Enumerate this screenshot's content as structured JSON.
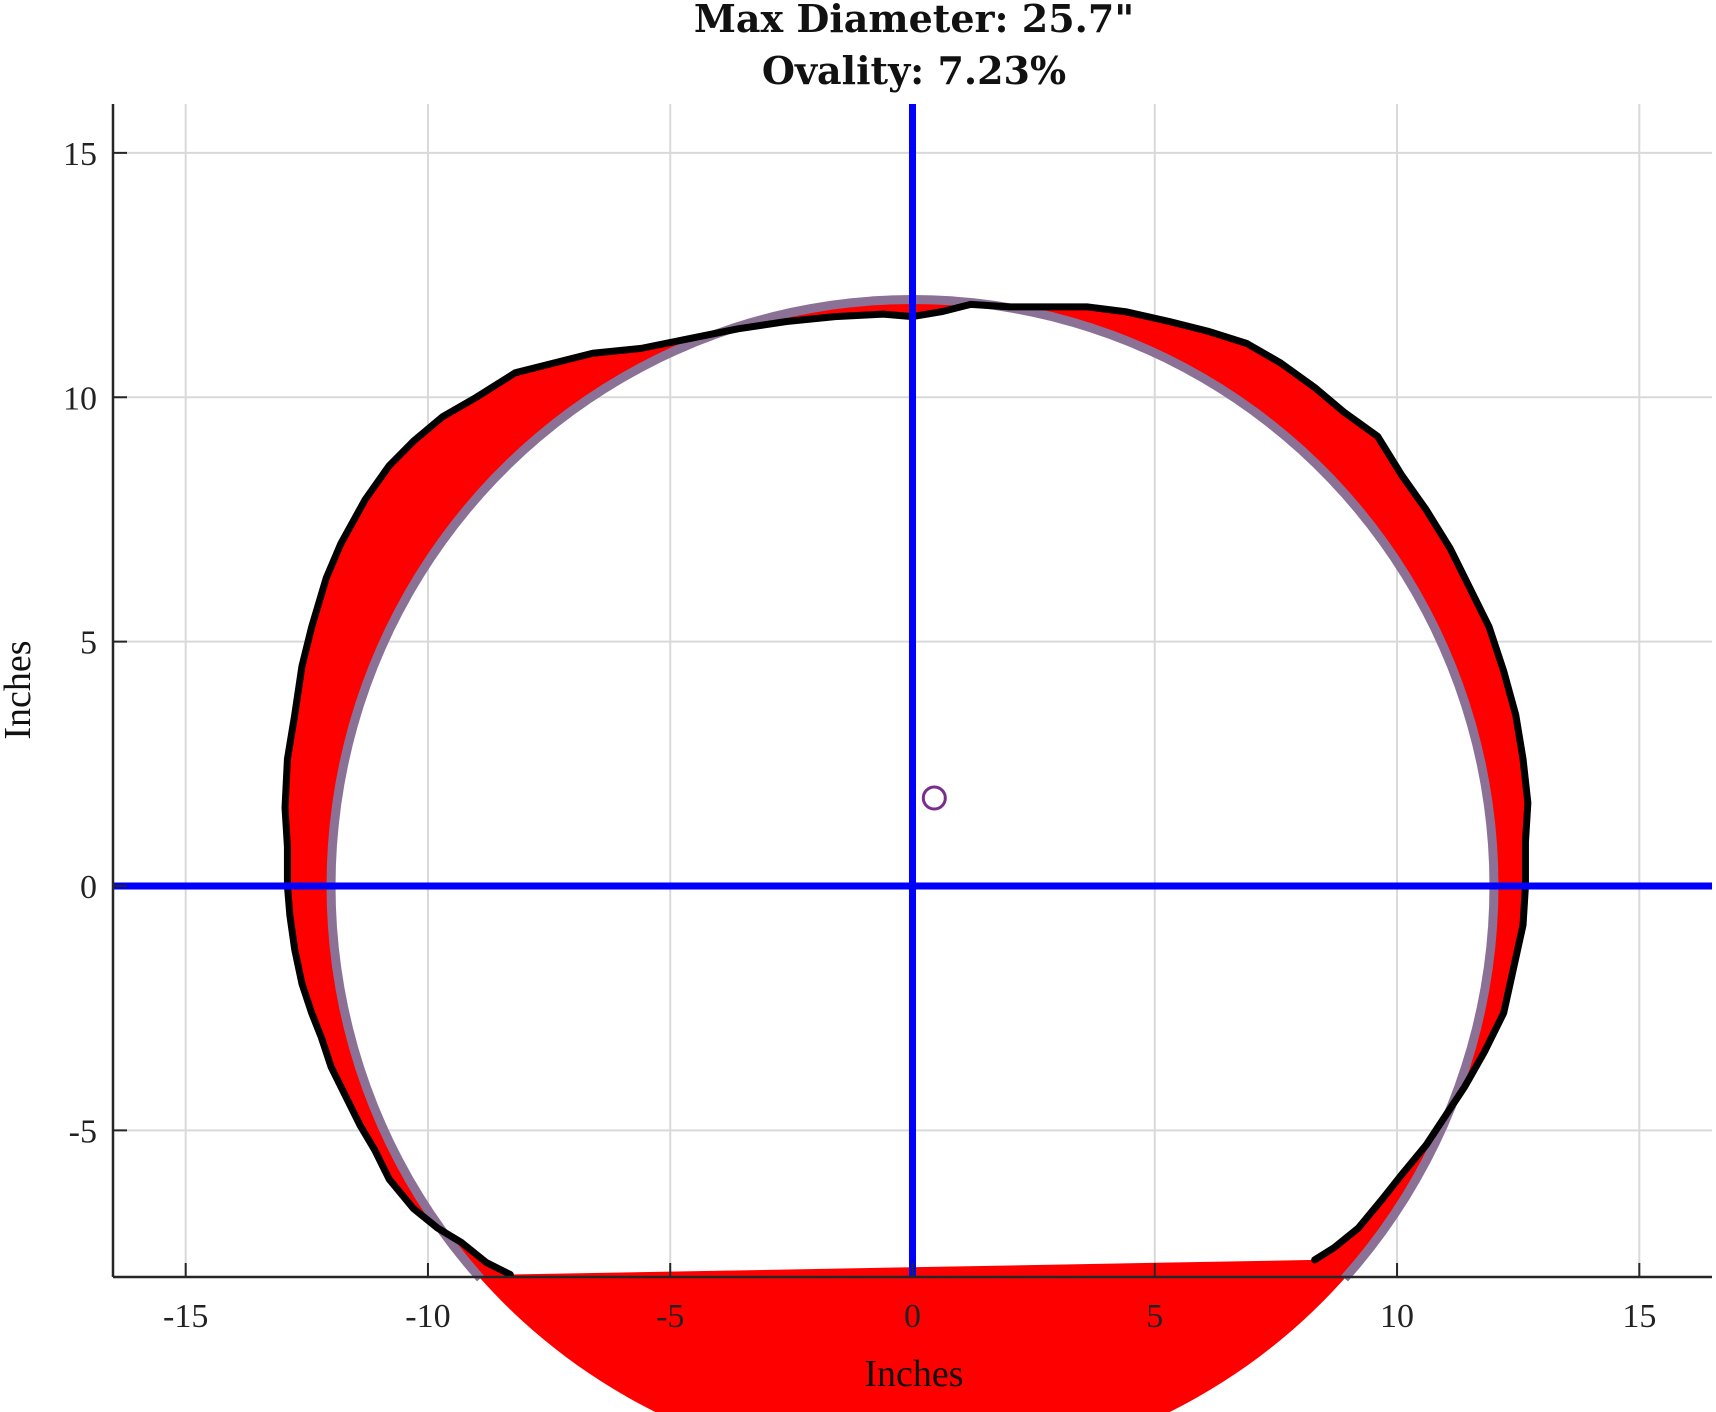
{
  "chart_data": {
    "type": "scatter",
    "title": [
      "Max Diameter: 25.7\"",
      "Ovality: 7.23%"
    ],
    "xlabel": "Inches",
    "ylabel": "Inches",
    "xlim": [
      -16.5,
      16.5
    ],
    "ylim": [
      -8,
      16
    ],
    "xticks": [
      -15,
      -10,
      -5,
      0,
      5,
      10,
      15
    ],
    "yticks": [
      -5,
      0,
      5,
      10,
      15
    ],
    "xtick_labels": [
      "-15",
      "-10",
      "-5",
      "0",
      "5",
      "10",
      "15"
    ],
    "ytick_labels": [
      "-5",
      "0",
      "5",
      "10",
      "15"
    ],
    "grid": true,
    "reference_circle": {
      "center": [
        0,
        0
      ],
      "radius": 12.0,
      "angle_range_deg": [
        -42,
        222
      ],
      "color": "#8c7196"
    },
    "measured_profile": {
      "color": "#000000",
      "points": [
        [
          -8.3,
          -7.95
        ],
        [
          -8.8,
          -7.7
        ],
        [
          -9.3,
          -7.3
        ],
        [
          -9.8,
          -7.0
        ],
        [
          -10.3,
          -6.6
        ],
        [
          -10.8,
          -6.0
        ],
        [
          -11.1,
          -5.4
        ],
        [
          -11.4,
          -4.9
        ],
        [
          -11.7,
          -4.3
        ],
        [
          -12.0,
          -3.7
        ],
        [
          -12.2,
          -3.1
        ],
        [
          -12.4,
          -2.6
        ],
        [
          -12.6,
          -2.0
        ],
        [
          -12.75,
          -1.3
        ],
        [
          -12.85,
          -0.6
        ],
        [
          -12.9,
          0.0
        ],
        [
          -12.9,
          0.8
        ],
        [
          -12.95,
          1.6
        ],
        [
          -12.9,
          2.6
        ],
        [
          -12.75,
          3.5
        ],
        [
          -12.6,
          4.5
        ],
        [
          -12.4,
          5.3
        ],
        [
          -12.1,
          6.3
        ],
        [
          -11.8,
          7.0
        ],
        [
          -11.3,
          7.9
        ],
        [
          -10.8,
          8.6
        ],
        [
          -10.3,
          9.1
        ],
        [
          -9.7,
          9.6
        ],
        [
          -9.0,
          10.0
        ],
        [
          -8.2,
          10.5
        ],
        [
          -7.4,
          10.7
        ],
        [
          -6.6,
          10.9
        ],
        [
          -5.6,
          11.0
        ],
        [
          -4.6,
          11.2
        ],
        [
          -3.6,
          11.4
        ],
        [
          -2.6,
          11.55
        ],
        [
          -1.6,
          11.65
        ],
        [
          -0.6,
          11.7
        ],
        [
          0.0,
          11.65
        ],
        [
          0.6,
          11.75
        ],
        [
          1.2,
          11.9
        ],
        [
          2.0,
          11.85
        ],
        [
          2.8,
          11.85
        ],
        [
          3.6,
          11.85
        ],
        [
          4.4,
          11.75
        ],
        [
          5.3,
          11.55
        ],
        [
          6.1,
          11.35
        ],
        [
          6.9,
          11.1
        ],
        [
          7.6,
          10.7
        ],
        [
          8.3,
          10.2
        ],
        [
          8.9,
          9.7
        ],
        [
          9.6,
          9.2
        ],
        [
          10.1,
          8.4
        ],
        [
          10.6,
          7.7
        ],
        [
          11.1,
          6.9
        ],
        [
          11.5,
          6.1
        ],
        [
          11.9,
          5.3
        ],
        [
          12.2,
          4.4
        ],
        [
          12.45,
          3.5
        ],
        [
          12.6,
          2.6
        ],
        [
          12.7,
          1.7
        ],
        [
          12.65,
          0.9
        ],
        [
          12.65,
          0.0
        ],
        [
          12.6,
          -0.8
        ],
        [
          12.4,
          -1.7
        ],
        [
          12.2,
          -2.6
        ],
        [
          11.8,
          -3.4
        ],
        [
          11.4,
          -4.1
        ],
        [
          11.0,
          -4.7
        ],
        [
          10.6,
          -5.3
        ],
        [
          10.1,
          -5.9
        ],
        [
          9.7,
          -6.4
        ],
        [
          9.2,
          -7.0
        ],
        [
          8.7,
          -7.4
        ],
        [
          8.3,
          -7.65
        ]
      ]
    },
    "excess_fill_color": "#ff0000",
    "axes_lines": {
      "x": 0,
      "y": 0,
      "color": "#0000ff"
    },
    "center_marker": {
      "x": 0.45,
      "y": 1.8,
      "color": "#7a2d8a"
    }
  }
}
